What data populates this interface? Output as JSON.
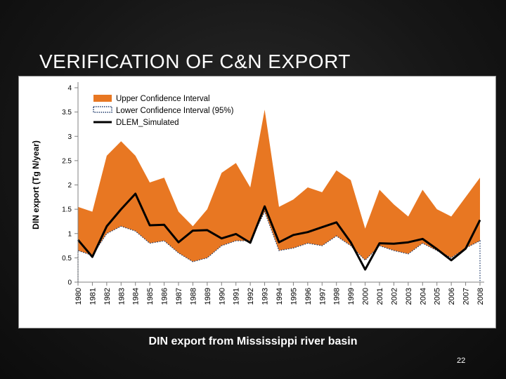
{
  "slide": {
    "title": "VERIFICATION OF C&N EXPORT",
    "caption": "DIN export from Mississippi river basin",
    "page_number": "22"
  },
  "chart_data": {
    "type": "area",
    "title": "",
    "xlabel": "",
    "ylabel": "DIN export (Tg N/year)",
    "ylim": [
      0,
      4
    ],
    "yticks": [
      0,
      0.5,
      1,
      1.5,
      2,
      2.5,
      3,
      3.5,
      4
    ],
    "x": [
      "1980",
      "1981",
      "1982",
      "1983",
      "1984",
      "1985",
      "1986",
      "1987",
      "1988",
      "1989",
      "1990",
      "1991",
      "1992",
      "1993",
      "1994",
      "1995",
      "1996",
      "1997",
      "1998",
      "1999",
      "2000",
      "2001",
      "2002",
      "2003",
      "2004",
      "2005",
      "2006",
      "2007",
      "2008"
    ],
    "legend_position": "top-left",
    "grid": false,
    "colors": {
      "band": "#e87722",
      "line": "#000000",
      "lower_dotted": "#1f3b6b"
    },
    "series": [
      {
        "name": "Upper Confidence Interval",
        "values": [
          1.55,
          1.45,
          2.6,
          2.9,
          2.6,
          2.05,
          2.15,
          1.45,
          1.15,
          1.5,
          2.25,
          2.45,
          1.95,
          3.55,
          1.55,
          1.7,
          1.95,
          1.85,
          2.3,
          2.1,
          1.1,
          1.9,
          1.6,
          1.35,
          1.9,
          1.5,
          1.35,
          1.75,
          2.15
        ]
      },
      {
        "name": "Lower Confidence Interval (95%)",
        "values": [
          0.65,
          0.55,
          1.0,
          1.15,
          1.05,
          0.8,
          0.85,
          0.6,
          0.42,
          0.5,
          0.75,
          0.85,
          0.85,
          1.45,
          0.65,
          0.7,
          0.8,
          0.75,
          0.95,
          0.75,
          0.45,
          0.75,
          0.65,
          0.58,
          0.8,
          0.65,
          0.5,
          0.7,
          0.85
        ]
      },
      {
        "name": "DLEM_Simulated",
        "values": [
          0.87,
          0.52,
          1.15,
          1.5,
          1.82,
          1.17,
          1.18,
          0.82,
          1.06,
          1.07,
          0.9,
          0.99,
          0.81,
          1.56,
          0.82,
          0.97,
          1.03,
          1.13,
          1.23,
          0.82,
          0.26,
          0.8,
          0.79,
          0.82,
          0.89,
          0.68,
          0.45,
          0.69,
          1.28
        ]
      }
    ]
  }
}
